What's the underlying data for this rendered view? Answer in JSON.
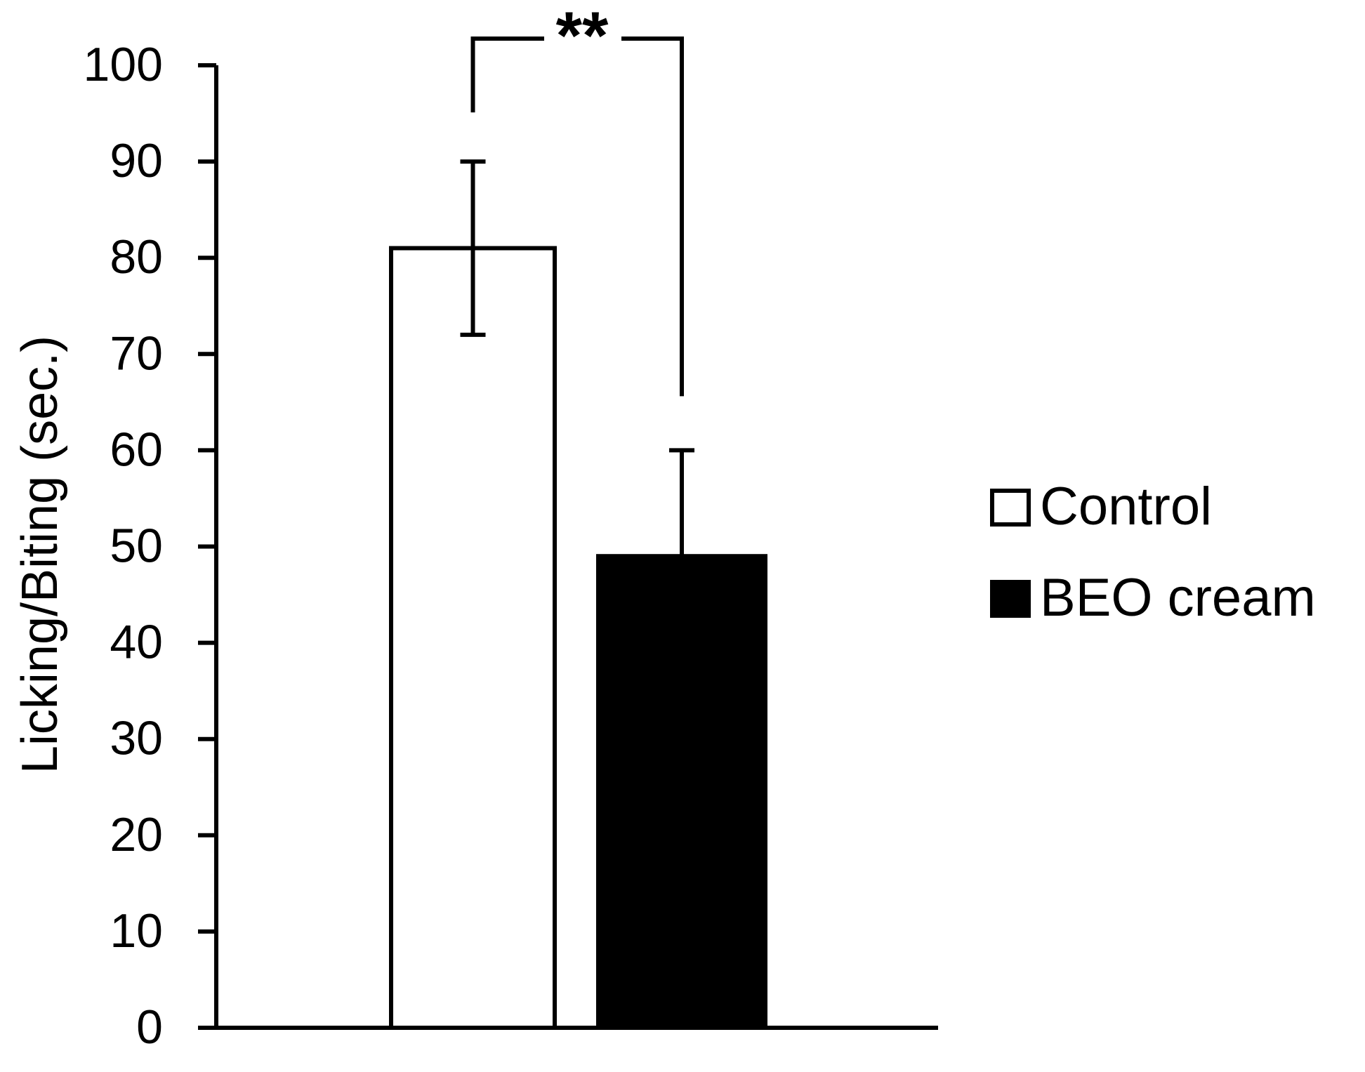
{
  "chart_data": {
    "type": "bar",
    "y_label": "Licking/Biting (sec.)",
    "series": [
      {
        "name": "Control",
        "color": "#ffffff",
        "values": [
          81
        ],
        "errors": [
          9
        ]
      },
      {
        "name": "BEO cream",
        "color": "#000000",
        "values": [
          49
        ],
        "errors": [
          11
        ]
      }
    ],
    "ylim": [
      0,
      100
    ],
    "yticks": [
      0,
      10,
      20,
      30,
      40,
      50,
      60,
      70,
      80,
      90,
      100
    ],
    "annotation": "**",
    "legend": "right"
  }
}
